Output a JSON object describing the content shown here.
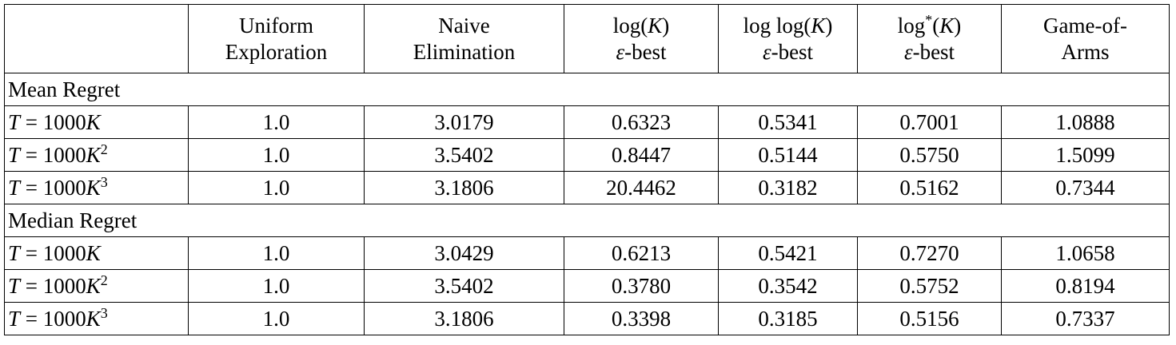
{
  "header": {
    "columns": [
      [
        [
          {
            "t": "Uniform"
          }
        ],
        [
          {
            "t": "Exploration"
          }
        ]
      ],
      [
        [
          {
            "t": "Naive"
          }
        ],
        [
          {
            "t": "Elimination"
          }
        ]
      ],
      [
        [
          {
            "t": "log("
          },
          {
            "i": "K"
          },
          {
            "t": ")"
          }
        ],
        [
          {
            "i": "ε"
          },
          {
            "t": "-best"
          }
        ]
      ],
      [
        [
          {
            "t": "log log("
          },
          {
            "i": "K"
          },
          {
            "t": ")"
          }
        ],
        [
          {
            "i": "ε"
          },
          {
            "t": "-best"
          }
        ]
      ],
      [
        [
          {
            "t": "log"
          },
          {
            "sup": "*"
          },
          {
            "t": "("
          },
          {
            "i": "K"
          },
          {
            "t": ")"
          }
        ],
        [
          {
            "i": "ε"
          },
          {
            "t": "-best"
          }
        ]
      ],
      [
        [
          {
            "t": "Game-of-"
          }
        ],
        [
          {
            "t": "Arms"
          }
        ]
      ]
    ]
  },
  "sections": [
    {
      "title": "Mean Regret",
      "rows": [
        {
          "label": [
            {
              "i": "T"
            },
            {
              "t": " = 1000"
            },
            {
              "i": "K"
            }
          ],
          "values": [
            "1.0",
            "3.0179",
            "0.6323",
            "0.5341",
            "0.7001",
            "1.0888"
          ]
        },
        {
          "label": [
            {
              "i": "T"
            },
            {
              "t": " = 1000"
            },
            {
              "i": "K"
            },
            {
              "sup": "2"
            }
          ],
          "values": [
            "1.0",
            "3.5402",
            "0.8447",
            "0.5144",
            "0.5750",
            "1.5099"
          ]
        },
        {
          "label": [
            {
              "i": "T"
            },
            {
              "t": " = 1000"
            },
            {
              "i": "K"
            },
            {
              "sup": "3"
            }
          ],
          "values": [
            "1.0",
            "3.1806",
            "20.4462",
            "0.3182",
            "0.5162",
            "0.7344"
          ]
        }
      ]
    },
    {
      "title": "Median Regret",
      "rows": [
        {
          "label": [
            {
              "i": "T"
            },
            {
              "t": " = 1000"
            },
            {
              "i": "K"
            }
          ],
          "values": [
            "1.0",
            "3.0429",
            "0.6213",
            "0.5421",
            "0.7270",
            "1.0658"
          ]
        },
        {
          "label": [
            {
              "i": "T"
            },
            {
              "t": " = 1000"
            },
            {
              "i": "K"
            },
            {
              "sup": "2"
            }
          ],
          "values": [
            "1.0",
            "3.5402",
            "0.3780",
            "0.3542",
            "0.5752",
            "0.8194"
          ]
        },
        {
          "label": [
            {
              "i": "T"
            },
            {
              "t": " = 1000"
            },
            {
              "i": "K"
            },
            {
              "sup": "3"
            }
          ],
          "values": [
            "1.0",
            "3.1806",
            "0.3398",
            "0.3185",
            "0.5156",
            "0.7337"
          ]
        }
      ]
    }
  ]
}
